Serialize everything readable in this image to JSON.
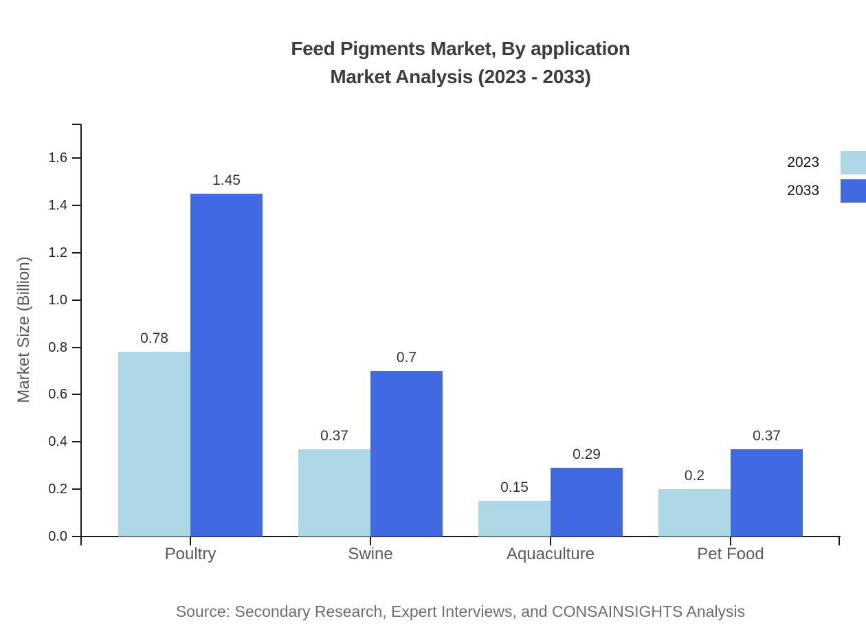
{
  "title": {
    "line1": "Feed Pigments Market, By application",
    "line2": "Market Analysis (2023 - 2033)"
  },
  "source": "Source: Secondary Research, Expert Interviews, and CONSAINSIGHTS Analysis",
  "legend": {
    "items": [
      {
        "label": "2023",
        "color": "#ADD8E6"
      },
      {
        "label": "2033",
        "color": "#4169E1"
      }
    ]
  },
  "chart_data": {
    "type": "bar",
    "title": "Feed Pigments Market, By application — Market Analysis (2023 - 2033)",
    "categories": [
      "Poultry",
      "Swine",
      "Aquaculture",
      "Pet Food"
    ],
    "series": [
      {
        "name": "2023",
        "color": "#ADD8E6",
        "values": [
          0.78,
          0.37,
          0.15,
          0.2
        ]
      },
      {
        "name": "2033",
        "color": "#4169E1",
        "values": [
          1.45,
          0.7,
          0.29,
          0.37
        ]
      }
    ],
    "xlabel": "",
    "ylabel": "Market Size (Billion)",
    "ylim": [
      0,
      1.74
    ],
    "yticks": [
      0,
      0.2,
      0.4,
      0.6,
      0.8,
      1.0,
      1.2,
      1.4,
      1.6
    ],
    "grid": false,
    "value_labels": true,
    "legend_position": "upper-right outside plot, swatches clipped at right edge"
  },
  "colors": {
    "background": "#FFFFFF",
    "axis": "#1A1A1A",
    "title_text": "#3D3D3D",
    "tick_label_text": "#262626",
    "axis_label_text": "#595959",
    "category_label_text": "#595959",
    "value_label_text": "#333333",
    "legend_text": "#111111",
    "source_text": "#6E6E6E",
    "series_2023": "#ADD8E6",
    "series_2033": "#4169E1"
  }
}
